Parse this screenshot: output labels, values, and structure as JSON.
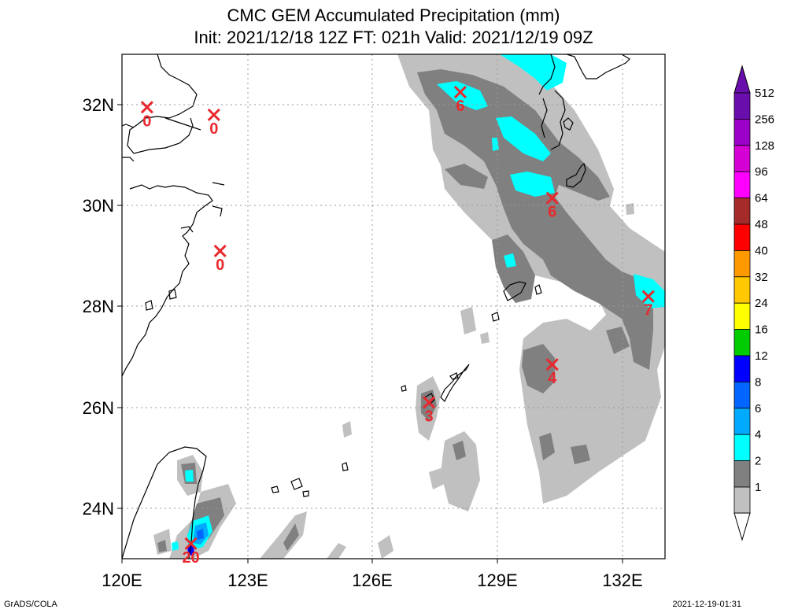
{
  "title": {
    "line1": "CMC GEM Accumulated Precipitation (mm)",
    "line2": "Init: 2021/12/18 12Z  FT: 021h  Valid: 2021/12/19 09Z"
  },
  "map": {
    "lon_range": [
      120,
      133
    ],
    "lat_range": [
      23,
      33
    ],
    "lat_ticks": [
      "32N",
      "30N",
      "28N",
      "26N",
      "24N"
    ],
    "lon_ticks": [
      "120E",
      "123E",
      "126E",
      "129E",
      "132E"
    ]
  },
  "colorbar": {
    "levels": [
      "512",
      "256",
      "128",
      "96",
      "64",
      "48",
      "40",
      "32",
      "24",
      "16",
      "12",
      "8",
      "6",
      "4",
      "2",
      "1"
    ],
    "colors": [
      "#6a0dad",
      "#9b00c8",
      "#d400d4",
      "#ff00ff",
      "#a52a2a",
      "#ff0000",
      "#ff9900",
      "#ffc800",
      "#ffff00",
      "#00cc00",
      "#0000ff",
      "#0066ff",
      "#00aaff",
      "#00ffff",
      "#808080",
      "#c0c0c0"
    ]
  },
  "stations": [
    {
      "value": "0",
      "lon": 120.6,
      "lat": 31.95
    },
    {
      "value": "0",
      "lon": 122.2,
      "lat": 31.8
    },
    {
      "value": "0",
      "lon": 122.35,
      "lat": 29.1
    },
    {
      "value": "6",
      "lon": 128.1,
      "lat": 32.25
    },
    {
      "value": "6",
      "lon": 130.3,
      "lat": 30.15
    },
    {
      "value": "7",
      "lon": 132.6,
      "lat": 28.2
    },
    {
      "value": "4",
      "lon": 130.3,
      "lat": 26.85
    },
    {
      "value": "3",
      "lon": 127.35,
      "lat": 26.1
    },
    {
      "value": "20",
      "lon": 121.65,
      "lat": 23.3
    }
  ],
  "footer": {
    "left": "GrADS/COLA",
    "right": "2021-12-19-01:31"
  }
}
